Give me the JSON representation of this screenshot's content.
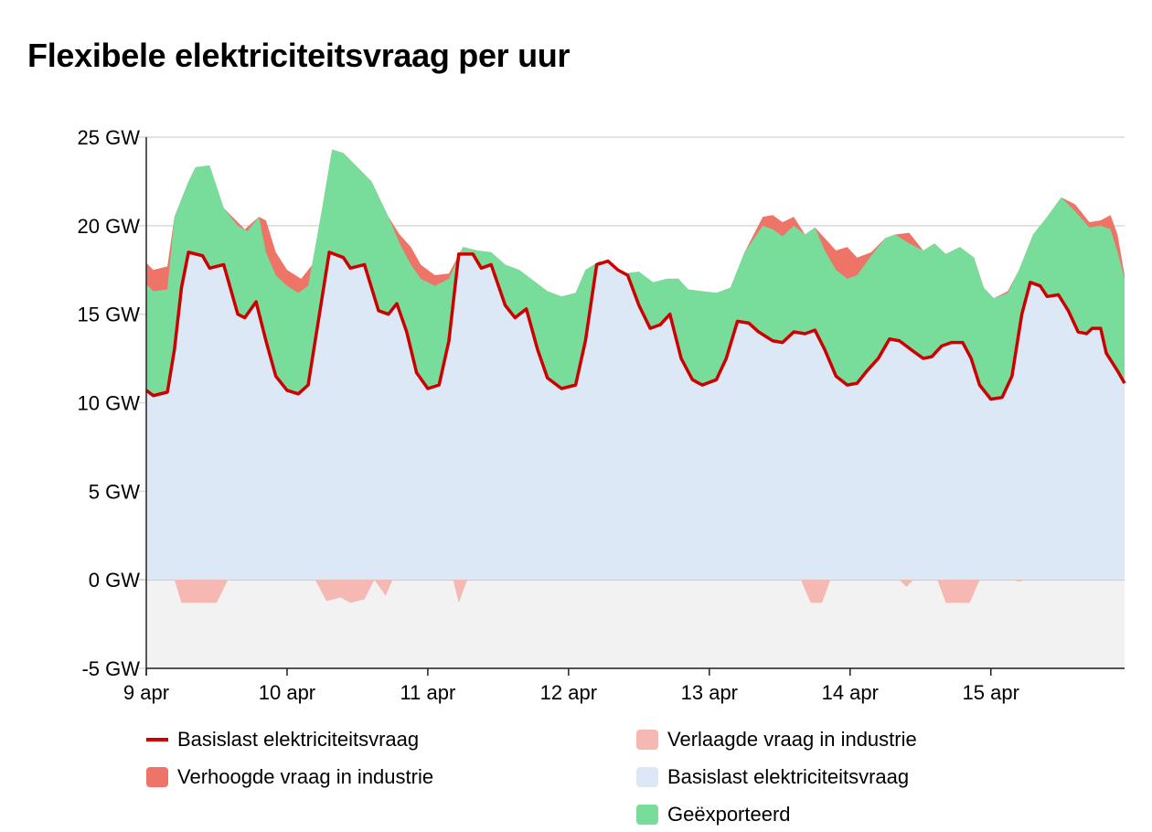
{
  "title": "Flexibele elektriciteitsvraag per uur",
  "colors": {
    "base_line": "#cc0000",
    "increased": "#ee7468",
    "reduced": "#f5b8b2",
    "base_area": "#dce8f6",
    "exported": "#78dc9a",
    "negative_bg": "#f2f2f2",
    "grid": "#d9d9d9"
  },
  "legend": [
    {
      "label": "Basislast elektriciteitsvraag",
      "kind": "line",
      "color": "#cc0000"
    },
    {
      "label": "Verhoogde vraag in industrie",
      "kind": "area",
      "color": "#ee7468"
    },
    {
      "label": "Verlaagde vraag in industrie",
      "kind": "area",
      "color": "#f5b8b2"
    },
    {
      "label": "Basislast elektriciteitsvraag",
      "kind": "area",
      "color": "#dce8f6"
    },
    {
      "label": "Geëxporteerd",
      "kind": "area",
      "color": "#78dc9a"
    }
  ],
  "chart_data": {
    "type": "area",
    "title": "Flexibele elektriciteitsvraag per uur",
    "unit": "GW",
    "ylim": [
      -5,
      25
    ],
    "yticks": [
      -5,
      0,
      5,
      10,
      15,
      20,
      25
    ],
    "ytick_labels": [
      "-5 GW",
      "0 GW",
      "5 GW",
      "10 GW",
      "15 GW",
      "20 GW",
      "25 GW"
    ],
    "xlim": [
      9,
      15.95
    ],
    "xticks": [
      9,
      10,
      11,
      12,
      13,
      14,
      15
    ],
    "xtick_labels": [
      "9 apr",
      "10 apr",
      "11 apr",
      "12 apr",
      "13 apr",
      "14 apr",
      "15 apr"
    ],
    "grid": true,
    "legend_position": "bottom",
    "series": [
      {
        "name": "Basislast elektriciteitsvraag",
        "kind": "line",
        "points": [
          [
            9.0,
            10.7
          ],
          [
            9.05,
            10.4
          ],
          [
            9.15,
            10.6
          ],
          [
            9.2,
            13.0
          ],
          [
            9.25,
            16.5
          ],
          [
            9.3,
            18.5
          ],
          [
            9.4,
            18.3
          ],
          [
            9.45,
            17.6
          ],
          [
            9.55,
            17.8
          ],
          [
            9.65,
            15.0
          ],
          [
            9.7,
            14.8
          ],
          [
            9.78,
            15.7
          ],
          [
            9.85,
            13.5
          ],
          [
            9.92,
            11.5
          ],
          [
            10.0,
            10.7
          ],
          [
            10.08,
            10.5
          ],
          [
            10.15,
            11.0
          ],
          [
            10.22,
            14.5
          ],
          [
            10.3,
            18.5
          ],
          [
            10.4,
            18.2
          ],
          [
            10.45,
            17.6
          ],
          [
            10.55,
            17.8
          ],
          [
            10.65,
            15.2
          ],
          [
            10.72,
            15.0
          ],
          [
            10.78,
            15.6
          ],
          [
            10.85,
            14.0
          ],
          [
            10.92,
            11.7
          ],
          [
            11.0,
            10.8
          ],
          [
            11.08,
            11.0
          ],
          [
            11.15,
            13.5
          ],
          [
            11.22,
            18.4
          ],
          [
            11.32,
            18.4
          ],
          [
            11.38,
            17.6
          ],
          [
            11.45,
            17.8
          ],
          [
            11.55,
            15.5
          ],
          [
            11.62,
            14.8
          ],
          [
            11.7,
            15.3
          ],
          [
            11.78,
            13.0
          ],
          [
            11.85,
            11.4
          ],
          [
            11.95,
            10.8
          ],
          [
            12.05,
            11.0
          ],
          [
            12.12,
            13.5
          ],
          [
            12.2,
            17.8
          ],
          [
            12.28,
            18.0
          ],
          [
            12.35,
            17.5
          ],
          [
            12.42,
            17.2
          ],
          [
            12.5,
            15.5
          ],
          [
            12.58,
            14.2
          ],
          [
            12.65,
            14.4
          ],
          [
            12.72,
            15.0
          ],
          [
            12.8,
            12.5
          ],
          [
            12.88,
            11.3
          ],
          [
            12.95,
            11.0
          ],
          [
            13.05,
            11.3
          ],
          [
            13.12,
            12.5
          ],
          [
            13.2,
            14.6
          ],
          [
            13.28,
            14.5
          ],
          [
            13.35,
            14.0
          ],
          [
            13.45,
            13.5
          ],
          [
            13.52,
            13.4
          ],
          [
            13.6,
            14.0
          ],
          [
            13.68,
            13.9
          ],
          [
            13.75,
            14.1
          ],
          [
            13.82,
            13.0
          ],
          [
            13.9,
            11.5
          ],
          [
            13.98,
            11.0
          ],
          [
            14.05,
            11.1
          ],
          [
            14.12,
            11.8
          ],
          [
            14.2,
            12.5
          ],
          [
            14.28,
            13.6
          ],
          [
            14.35,
            13.5
          ],
          [
            14.45,
            12.9
          ],
          [
            14.52,
            12.5
          ],
          [
            14.58,
            12.6
          ],
          [
            14.65,
            13.2
          ],
          [
            14.72,
            13.4
          ],
          [
            14.8,
            13.4
          ],
          [
            14.86,
            12.5
          ],
          [
            14.92,
            11.0
          ],
          [
            15.0,
            10.2
          ],
          [
            15.08,
            10.3
          ],
          [
            15.15,
            11.5
          ],
          [
            15.22,
            15.0
          ],
          [
            15.28,
            16.8
          ],
          [
            15.35,
            16.6
          ],
          [
            15.4,
            16.0
          ],
          [
            15.48,
            16.1
          ],
          [
            15.55,
            15.2
          ],
          [
            15.62,
            14.0
          ],
          [
            15.68,
            13.9
          ],
          [
            15.72,
            14.2
          ],
          [
            15.78,
            14.2
          ],
          [
            15.82,
            12.8
          ],
          [
            15.9,
            11.8
          ],
          [
            15.95,
            11.1
          ]
        ]
      },
      {
        "name": "Verhoogde vraag in industrie",
        "kind": "area",
        "points": [
          [
            9.0,
            17.9
          ],
          [
            9.05,
            17.5
          ],
          [
            9.15,
            17.7
          ],
          [
            9.2,
            20.5
          ],
          [
            9.3,
            22.5
          ],
          [
            9.35,
            23.3
          ],
          [
            9.45,
            23.4
          ],
          [
            9.55,
            21.0
          ],
          [
            9.65,
            20.2
          ],
          [
            9.7,
            19.8
          ],
          [
            9.8,
            20.5
          ],
          [
            9.85,
            20.3
          ],
          [
            9.92,
            18.5
          ],
          [
            10.0,
            17.5
          ],
          [
            10.1,
            17.0
          ],
          [
            10.18,
            17.8
          ],
          [
            10.25,
            21.0
          ],
          [
            10.32,
            24.3
          ],
          [
            10.4,
            24.1
          ],
          [
            10.5,
            23.3
          ],
          [
            10.6,
            22.5
          ],
          [
            10.72,
            20.5
          ],
          [
            10.8,
            19.5
          ],
          [
            10.88,
            18.8
          ],
          [
            10.95,
            17.8
          ],
          [
            11.05,
            17.2
          ],
          [
            11.15,
            17.3
          ],
          [
            11.25,
            18.8
          ],
          [
            11.35,
            18.6
          ],
          [
            11.45,
            18.5
          ],
          [
            11.55,
            17.8
          ],
          [
            11.65,
            17.5
          ],
          [
            11.75,
            16.9
          ],
          [
            11.85,
            16.3
          ],
          [
            11.95,
            16.0
          ],
          [
            12.05,
            16.2
          ],
          [
            12.12,
            17.5
          ],
          [
            12.22,
            18.0
          ],
          [
            12.3,
            17.8
          ],
          [
            12.4,
            17.3
          ],
          [
            12.5,
            17.4
          ],
          [
            12.6,
            16.8
          ],
          [
            12.7,
            17.0
          ],
          [
            12.78,
            17.0
          ],
          [
            12.85,
            16.4
          ],
          [
            12.95,
            16.3
          ],
          [
            13.05,
            16.2
          ],
          [
            13.15,
            16.5
          ],
          [
            13.25,
            18.5
          ],
          [
            13.38,
            20.5
          ],
          [
            13.45,
            20.6
          ],
          [
            13.52,
            20.2
          ],
          [
            13.6,
            20.5
          ],
          [
            13.68,
            19.5
          ],
          [
            13.75,
            19.9
          ],
          [
            13.82,
            19.3
          ],
          [
            13.9,
            18.6
          ],
          [
            13.98,
            18.8
          ],
          [
            14.05,
            18.2
          ],
          [
            14.15,
            18.5
          ],
          [
            14.25,
            19.3
          ],
          [
            14.32,
            19.5
          ],
          [
            14.42,
            19.6
          ],
          [
            14.52,
            18.6
          ],
          [
            14.6,
            19.0
          ],
          [
            14.68,
            18.4
          ],
          [
            14.78,
            18.8
          ],
          [
            14.88,
            18.2
          ],
          [
            14.95,
            16.5
          ],
          [
            15.02,
            15.9
          ],
          [
            15.12,
            16.3
          ],
          [
            15.2,
            17.5
          ],
          [
            15.3,
            19.5
          ],
          [
            15.4,
            20.5
          ],
          [
            15.5,
            21.6
          ],
          [
            15.6,
            21.2
          ],
          [
            15.7,
            20.2
          ],
          [
            15.78,
            20.3
          ],
          [
            15.85,
            20.6
          ],
          [
            15.9,
            19.5
          ],
          [
            15.95,
            17.2
          ]
        ]
      },
      {
        "name": "Geëxporteerd",
        "kind": "area",
        "points": [
          [
            9.0,
            16.7
          ],
          [
            9.05,
            16.3
          ],
          [
            9.15,
            16.4
          ],
          [
            9.2,
            20.5
          ],
          [
            9.3,
            22.5
          ],
          [
            9.35,
            23.3
          ],
          [
            9.45,
            23.4
          ],
          [
            9.55,
            21.0
          ],
          [
            9.65,
            20.0
          ],
          [
            9.72,
            19.7
          ],
          [
            9.8,
            20.5
          ],
          [
            9.85,
            18.5
          ],
          [
            9.92,
            17.2
          ],
          [
            10.0,
            16.6
          ],
          [
            10.08,
            16.2
          ],
          [
            10.15,
            16.6
          ],
          [
            10.25,
            21.0
          ],
          [
            10.32,
            24.3
          ],
          [
            10.4,
            24.1
          ],
          [
            10.5,
            23.3
          ],
          [
            10.6,
            22.5
          ],
          [
            10.72,
            20.5
          ],
          [
            10.8,
            19.0
          ],
          [
            10.88,
            17.8
          ],
          [
            10.95,
            17.0
          ],
          [
            11.05,
            16.6
          ],
          [
            11.15,
            17.0
          ],
          [
            11.25,
            18.8
          ],
          [
            11.35,
            18.6
          ],
          [
            11.45,
            18.5
          ],
          [
            11.55,
            17.8
          ],
          [
            11.65,
            17.5
          ],
          [
            11.75,
            16.9
          ],
          [
            11.85,
            16.3
          ],
          [
            11.95,
            16.0
          ],
          [
            12.05,
            16.2
          ],
          [
            12.12,
            17.5
          ],
          [
            12.22,
            18.0
          ],
          [
            12.3,
            17.8
          ],
          [
            12.4,
            17.3
          ],
          [
            12.5,
            17.4
          ],
          [
            12.6,
            16.8
          ],
          [
            12.7,
            17.0
          ],
          [
            12.78,
            17.0
          ],
          [
            12.85,
            16.4
          ],
          [
            12.95,
            16.3
          ],
          [
            13.05,
            16.2
          ],
          [
            13.15,
            16.5
          ],
          [
            13.25,
            18.5
          ],
          [
            13.38,
            20.0
          ],
          [
            13.45,
            19.8
          ],
          [
            13.52,
            19.4
          ],
          [
            13.6,
            20.0
          ],
          [
            13.68,
            19.5
          ],
          [
            13.75,
            19.9
          ],
          [
            13.82,
            18.6
          ],
          [
            13.9,
            17.5
          ],
          [
            13.98,
            17.0
          ],
          [
            14.05,
            17.2
          ],
          [
            14.15,
            18.3
          ],
          [
            14.25,
            19.3
          ],
          [
            14.32,
            19.5
          ],
          [
            14.42,
            19.0
          ],
          [
            14.52,
            18.6
          ],
          [
            14.6,
            19.0
          ],
          [
            14.68,
            18.4
          ],
          [
            14.78,
            18.8
          ],
          [
            14.88,
            18.2
          ],
          [
            14.95,
            16.5
          ],
          [
            15.02,
            15.9
          ],
          [
            15.12,
            16.2
          ],
          [
            15.2,
            17.5
          ],
          [
            15.3,
            19.5
          ],
          [
            15.4,
            20.5
          ],
          [
            15.5,
            21.6
          ],
          [
            15.6,
            20.8
          ],
          [
            15.7,
            19.9
          ],
          [
            15.78,
            20.0
          ],
          [
            15.85,
            19.8
          ],
          [
            15.9,
            18.5
          ],
          [
            15.95,
            17.0
          ]
        ]
      },
      {
        "name": "Verlaagde vraag in industrie",
        "kind": "area",
        "points": [
          [
            9.0,
            0
          ],
          [
            9.2,
            0
          ],
          [
            9.25,
            -1.3
          ],
          [
            9.5,
            -1.3
          ],
          [
            9.58,
            0
          ],
          [
            10.2,
            0
          ],
          [
            10.28,
            -1.2
          ],
          [
            10.38,
            -1.0
          ],
          [
            10.45,
            -1.3
          ],
          [
            10.55,
            -1.1
          ],
          [
            10.62,
            0
          ],
          [
            10.7,
            -0.9
          ],
          [
            10.75,
            0
          ],
          [
            11.18,
            0
          ],
          [
            11.22,
            -1.3
          ],
          [
            11.28,
            0
          ],
          [
            13.65,
            0
          ],
          [
            13.72,
            -1.3
          ],
          [
            13.8,
            -1.3
          ],
          [
            13.86,
            0
          ],
          [
            14.35,
            0
          ],
          [
            14.4,
            -0.4
          ],
          [
            14.45,
            0
          ],
          [
            14.62,
            0
          ],
          [
            14.68,
            -1.3
          ],
          [
            14.85,
            -1.3
          ],
          [
            14.92,
            0
          ],
          [
            15.15,
            0
          ],
          [
            15.2,
            -0.1
          ],
          [
            15.25,
            0
          ],
          [
            15.95,
            0
          ]
        ]
      }
    ]
  }
}
